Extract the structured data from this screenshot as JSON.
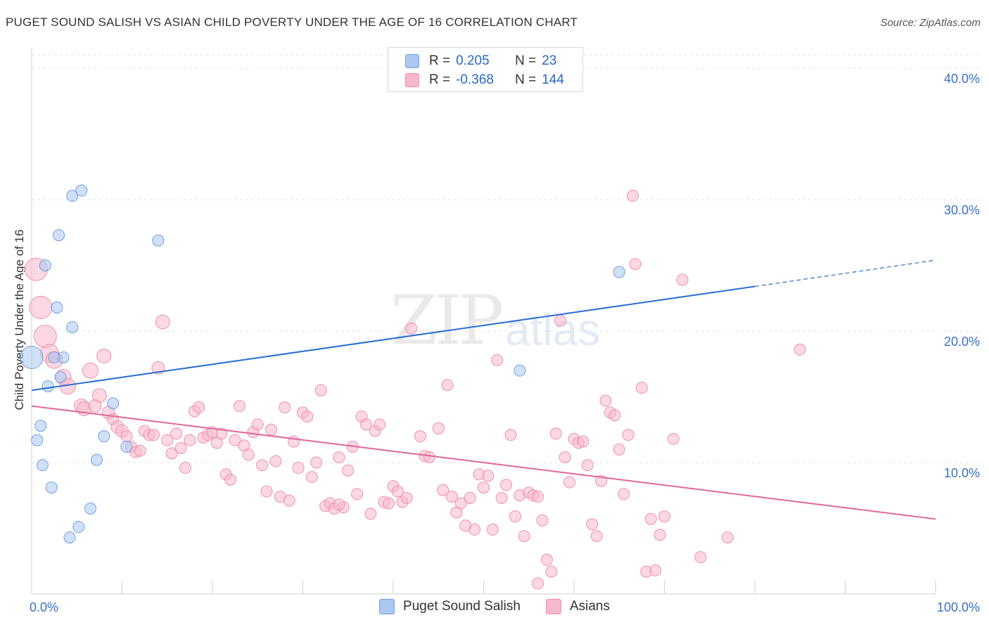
{
  "title": "PUGET SOUND SALISH VS ASIAN CHILD POVERTY UNDER THE AGE OF 16 CORRELATION CHART",
  "source": "Source: ZipAtlas.com",
  "watermark": {
    "zip": "ZIP",
    "atlas": "atlas"
  },
  "legend": {
    "rows": [
      {
        "r_label": "R =",
        "r_value": "0.205",
        "n_label": "N =",
        "n_value": "23",
        "color": "#aac8f0"
      },
      {
        "r_label": "R =",
        "r_value": "-0.368",
        "n_label": "N =",
        "n_value": "144",
        "color": "#f7b8cb"
      }
    ]
  },
  "bottom_legend": [
    {
      "label": "Puget Sound Salish",
      "color": "#aac8f0"
    },
    {
      "label": "Asians",
      "color": "#f7b8cb"
    }
  ],
  "chart_data": {
    "type": "scatter",
    "ylabel": "Child Poverty Under the Age of 16",
    "xlim": [
      0,
      100
    ],
    "ylim": [
      0,
      40
    ],
    "x_tick_labels": [
      "0.0%",
      "100.0%"
    ],
    "y_tick_labels": [
      "10.0%",
      "20.0%",
      "30.0%",
      "40.0%"
    ],
    "y_ticks": [
      10,
      20,
      30,
      40
    ],
    "grid": true,
    "series": [
      {
        "name": "Puget Sound Salish",
        "color": "#6fa0e0",
        "fill": "#aac8f0",
        "trend": {
          "x0": 0,
          "y0": 15.5,
          "x1": 80,
          "y1": 23.4,
          "dash_to_x": 100,
          "dash_to_y": 25.4,
          "color": "#2a6fd1"
        },
        "points": [
          [
            0,
            18,
            16
          ],
          [
            1.5,
            25,
            8
          ],
          [
            3.5,
            18,
            8
          ],
          [
            4.5,
            30.3,
            8
          ],
          [
            5.5,
            30.7,
            8
          ],
          [
            3,
            27.3,
            8
          ],
          [
            2.8,
            21.8,
            8
          ],
          [
            4.5,
            20.3,
            8
          ],
          [
            2.5,
            18,
            8
          ],
          [
            3.2,
            16.5,
            8
          ],
          [
            1.8,
            15.8,
            8
          ],
          [
            9,
            14.5,
            8
          ],
          [
            1,
            12.8,
            8
          ],
          [
            0.6,
            11.7,
            8
          ],
          [
            8,
            12,
            8
          ],
          [
            10.5,
            11.2,
            8
          ],
          [
            7.2,
            10.2,
            8
          ],
          [
            1.2,
            9.8,
            8
          ],
          [
            2.2,
            8.1,
            8
          ],
          [
            6.5,
            6.5,
            8
          ],
          [
            5.2,
            5.1,
            8
          ],
          [
            4.2,
            4.3,
            8
          ],
          [
            14,
            26.9,
            8
          ],
          [
            54,
            17,
            8
          ],
          [
            65,
            24.5,
            8
          ]
        ]
      },
      {
        "name": "Asians",
        "color": "#ee90ad",
        "fill": "#f7b8cb",
        "trend": {
          "x0": 0,
          "y0": 14.3,
          "x1": 100,
          "y1": 5.7,
          "color": "#e0679a"
        },
        "points": [
          [
            0.5,
            24.7,
            16
          ],
          [
            1,
            21.8,
            16
          ],
          [
            1.5,
            19.6,
            16
          ],
          [
            2,
            18.3,
            13
          ],
          [
            2.5,
            17.8,
            12
          ],
          [
            3.5,
            16.5,
            11
          ],
          [
            4,
            15.8,
            11
          ],
          [
            6.5,
            17,
            11
          ],
          [
            7.5,
            15.1,
            10
          ],
          [
            8,
            18.1,
            10
          ],
          [
            5.5,
            14.3,
            10
          ],
          [
            5.8,
            14.1,
            10
          ],
          [
            7,
            14.3,
            9
          ],
          [
            8.5,
            13.8,
            9
          ],
          [
            9,
            13.3,
            8
          ],
          [
            9.5,
            12.7,
            9
          ],
          [
            10,
            12.4,
            9
          ],
          [
            10.5,
            12,
            8
          ],
          [
            11,
            11.2,
            8
          ],
          [
            11.5,
            10.8,
            8
          ],
          [
            12,
            10.9,
            8
          ],
          [
            12.5,
            12.4,
            8
          ],
          [
            13,
            12.1,
            8
          ],
          [
            13.5,
            12.1,
            8
          ],
          [
            14,
            17.2,
            9
          ],
          [
            14.5,
            20.7,
            10
          ],
          [
            15,
            11.7,
            8
          ],
          [
            15.5,
            10.7,
            8
          ],
          [
            16,
            12.2,
            8
          ],
          [
            16.5,
            11.1,
            8
          ],
          [
            17,
            9.6,
            8
          ],
          [
            17.5,
            11.7,
            8
          ],
          [
            18,
            13.9,
            8
          ],
          [
            18.5,
            14.2,
            8
          ],
          [
            19,
            11.9,
            8
          ],
          [
            19.5,
            12.1,
            8
          ],
          [
            20,
            12.3,
            8
          ],
          [
            20.5,
            11.5,
            8
          ],
          [
            21,
            12.2,
            8
          ],
          [
            21.5,
            9.1,
            8
          ],
          [
            22,
            8.7,
            8
          ],
          [
            22.5,
            11.7,
            8
          ],
          [
            23,
            14.3,
            8
          ],
          [
            23.5,
            11.3,
            8
          ],
          [
            24,
            10.6,
            8
          ],
          [
            24.5,
            12.3,
            8
          ],
          [
            25,
            12.9,
            8
          ],
          [
            25.5,
            9.8,
            8
          ],
          [
            26,
            7.8,
            8
          ],
          [
            26.5,
            12.5,
            8
          ],
          [
            27,
            10.1,
            8
          ],
          [
            27.5,
            7.4,
            8
          ],
          [
            28,
            14.2,
            8
          ],
          [
            28.5,
            7.1,
            8
          ],
          [
            29,
            11.6,
            8
          ],
          [
            29.5,
            9.6,
            8
          ],
          [
            30,
            13.8,
            8
          ],
          [
            30.5,
            13.5,
            8
          ],
          [
            31,
            8.9,
            8
          ],
          [
            31.5,
            10,
            8
          ],
          [
            32,
            15.5,
            8
          ],
          [
            32.5,
            6.7,
            8
          ],
          [
            33,
            6.9,
            8
          ],
          [
            33.5,
            6.5,
            8
          ],
          [
            34,
            10.4,
            8
          ],
          [
            34.5,
            6.6,
            8
          ],
          [
            35,
            9.4,
            8
          ],
          [
            35.5,
            11.2,
            8
          ],
          [
            36,
            7.6,
            8
          ],
          [
            36.5,
            13.5,
            8
          ],
          [
            37,
            12.9,
            8
          ],
          [
            37.5,
            6.1,
            8
          ],
          [
            38,
            12.4,
            8
          ],
          [
            38.5,
            12.9,
            8
          ],
          [
            39,
            7,
            8
          ],
          [
            39.5,
            6.9,
            8
          ],
          [
            40,
            8.2,
            8
          ],
          [
            40.5,
            7.8,
            8
          ],
          [
            41,
            7,
            8
          ],
          [
            41.5,
            7.3,
            8
          ],
          [
            42,
            20.2,
            8
          ],
          [
            43,
            12,
            8
          ],
          [
            43.5,
            10.5,
            8
          ],
          [
            44,
            10.4,
            8
          ],
          [
            45,
            12.6,
            8
          ],
          [
            45.5,
            7.9,
            8
          ],
          [
            46,
            15.9,
            8
          ],
          [
            46.5,
            7.4,
            8
          ],
          [
            47,
            6.2,
            8
          ],
          [
            47.5,
            6.9,
            8
          ],
          [
            48,
            5.2,
            8
          ],
          [
            48.5,
            7.3,
            8
          ],
          [
            49,
            4.9,
            8
          ],
          [
            49.5,
            9.1,
            8
          ],
          [
            50,
            8.1,
            8
          ],
          [
            50.5,
            9,
            8
          ],
          [
            51,
            4.9,
            8
          ],
          [
            51.5,
            17.8,
            8
          ],
          [
            52,
            7.3,
            8
          ],
          [
            52.5,
            8.3,
            8
          ],
          [
            53,
            12.1,
            8
          ],
          [
            53.5,
            5.9,
            8
          ],
          [
            54,
            7.5,
            8
          ],
          [
            54.5,
            4.4,
            8
          ],
          [
            55,
            7.7,
            8
          ],
          [
            55.5,
            7.5,
            8
          ],
          [
            56,
            7.4,
            8
          ],
          [
            56.5,
            5.6,
            8
          ],
          [
            57,
            2.6,
            8
          ],
          [
            57.5,
            1.7,
            8
          ],
          [
            58,
            12.2,
            8
          ],
          [
            58.5,
            20.8,
            8
          ],
          [
            59,
            10.4,
            8
          ],
          [
            59.5,
            8.5,
            8
          ],
          [
            60,
            11.8,
            8
          ],
          [
            60.5,
            11.5,
            8
          ],
          [
            61,
            11.6,
            8
          ],
          [
            61.5,
            9.8,
            8
          ],
          [
            62,
            5.3,
            8
          ],
          [
            62.5,
            4.4,
            8
          ],
          [
            63,
            8.6,
            8
          ],
          [
            63.5,
            14.7,
            8
          ],
          [
            64,
            13.8,
            8
          ],
          [
            64.5,
            13.6,
            8
          ],
          [
            65,
            11,
            8
          ],
          [
            65.5,
            7.6,
            8
          ],
          [
            66,
            12.1,
            8
          ],
          [
            66.5,
            30.3,
            8
          ],
          [
            66.8,
            25.1,
            8
          ],
          [
            67.5,
            15.7,
            8
          ],
          [
            68,
            1.7,
            8
          ],
          [
            68.5,
            5.7,
            8
          ],
          [
            69,
            1.8,
            8
          ],
          [
            69.5,
            4.5,
            8
          ],
          [
            70,
            5.9,
            8
          ],
          [
            71,
            11.8,
            8
          ],
          [
            72,
            23.9,
            8
          ],
          [
            74,
            2.8,
            8
          ],
          [
            77,
            4.3,
            8
          ],
          [
            85,
            18.6,
            8
          ],
          [
            56,
            0.8,
            8
          ],
          [
            34,
            6.8,
            8
          ]
        ]
      }
    ]
  }
}
